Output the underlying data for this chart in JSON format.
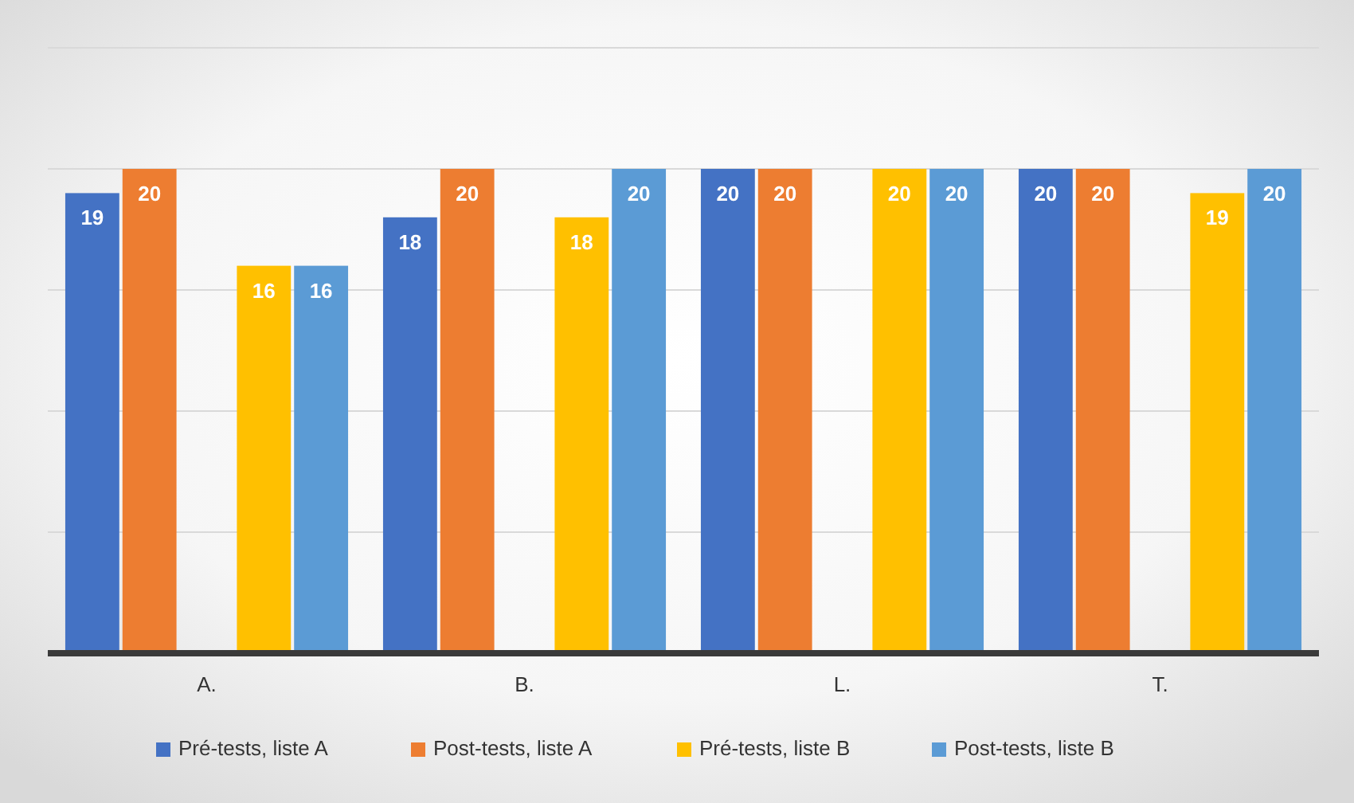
{
  "chart_data": {
    "type": "bar",
    "categories": [
      "A.",
      "B.",
      "L.",
      "T."
    ],
    "series": [
      {
        "name": "Pré-tests, liste A",
        "color": "#4472c4",
        "values": [
          19,
          18,
          20,
          20
        ]
      },
      {
        "name": "Post-tests, liste A",
        "color": "#ed7d31",
        "values": [
          20,
          20,
          20,
          20
        ]
      },
      {
        "name": "Pré-tests, liste B",
        "color": "#ffc000",
        "values": [
          16,
          18,
          20,
          19
        ]
      },
      {
        "name": "Post-tests, liste B",
        "color": "#5b9bd5",
        "values": [
          16,
          20,
          20,
          20
        ]
      }
    ],
    "ylim": [
      0,
      25
    ],
    "yticks": [
      0,
      5,
      10,
      15,
      20,
      25
    ],
    "grid": "y",
    "tick_labels": "x",
    "data_labels": true,
    "legend": "bottom"
  }
}
